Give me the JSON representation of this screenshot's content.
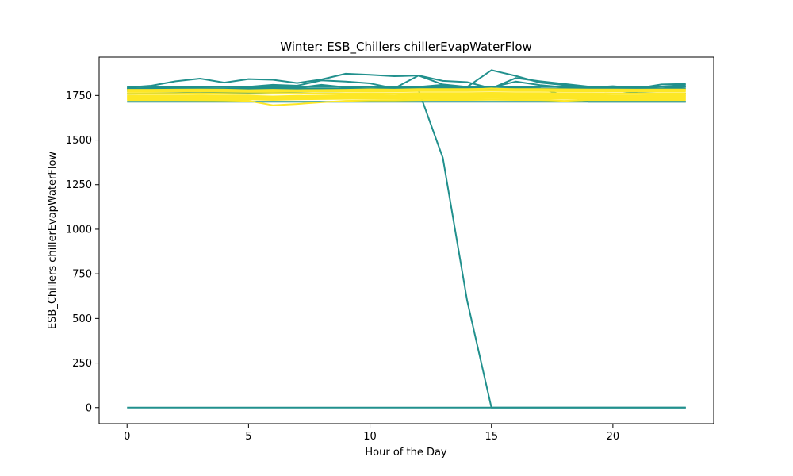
{
  "chart_data": {
    "type": "line",
    "title": "Winter: ESB_Chillers chillerEvapWaterFlow",
    "xlabel": "Hour of the Day",
    "ylabel": "ESB_Chillers chillerEvapWaterFlow",
    "xlim": [
      -1.15,
      24.15
    ],
    "ylim": [
      -90,
      1965
    ],
    "x_ticks": [
      0,
      5,
      10,
      15,
      20
    ],
    "y_ticks": [
      0,
      250,
      500,
      750,
      1000,
      1250,
      1500,
      1750
    ],
    "grid": false,
    "legend": "none",
    "x": [
      0,
      1,
      2,
      3,
      4,
      5,
      6,
      7,
      8,
      9,
      10,
      11,
      12,
      13,
      14,
      15,
      16,
      17,
      18,
      19,
      20,
      21,
      22,
      23
    ],
    "series": [
      {
        "color": "#21908d",
        "values": [
          1795,
          1805,
          1830,
          1845,
          1822,
          1842,
          1838,
          1820,
          1840,
          1872,
          1866,
          1858,
          1862,
          1832,
          1825,
          1790,
          1848,
          1830,
          1815,
          1800,
          1798,
          1790,
          1812,
          1815
        ]
      },
      {
        "color": "#21908d",
        "values": [
          1790,
          1792,
          1795,
          1798,
          1800,
          1799,
          1810,
          1805,
          1835,
          1828,
          1818,
          1790,
          1862,
          1812,
          1798,
          1892,
          1860,
          1822,
          1808,
          1795,
          1802,
          1792,
          1800,
          1810
        ]
      },
      {
        "color": "#21908d",
        "values": [
          1785,
          1786,
          1787,
          1788,
          1790,
          1792,
          1794,
          1792,
          1810,
          1796,
          1800,
          1795,
          1798,
          1810,
          1790,
          1795,
          1828,
          1808,
          1796,
          1790,
          1795,
          1785,
          1790,
          1800
        ]
      },
      {
        "color": "#21908d",
        "values": [
          1790,
          1790,
          1790,
          1790,
          1790,
          1790,
          1790,
          1790,
          1790,
          1790,
          1790,
          1790,
          1790,
          1790,
          1790,
          1790,
          1790,
          1790,
          1790,
          1790,
          1790,
          1790,
          1790,
          1790
        ]
      },
      {
        "color": "#21908d",
        "values": [
          1715,
          1715,
          1715,
          1715,
          1715,
          1715,
          1715,
          1715,
          1715,
          1715,
          1715,
          1715,
          1715,
          1715,
          1715,
          1715,
          1715,
          1715,
          1715,
          1715,
          1715,
          1715,
          1715,
          1715
        ]
      },
      {
        "color": "#21908d",
        "values": [
          1775,
          1778,
          1780,
          1782,
          1784,
          1786,
          1785,
          1784,
          1786,
          1788,
          1790,
          1789,
          1791,
          1793,
          1792,
          1790,
          1792,
          1791,
          1750,
          1715,
          1715,
          1715,
          1715,
          1715
        ]
      },
      {
        "color": "#21908d",
        "values": [
          1760,
          1761,
          1762,
          1764,
          1765,
          1766,
          1768,
          1770,
          1772,
          1774,
          1776,
          1778,
          1780,
          1780,
          1780,
          1780,
          1780,
          1780,
          1780,
          1780,
          1780,
          1765,
          1762,
          1760
        ]
      },
      {
        "color": "#21908d",
        "values": [
          1800,
          1800,
          1800,
          1800,
          1800,
          1800,
          1800,
          1800,
          1800,
          1800,
          1800,
          1800,
          1800,
          1800,
          1800,
          1800,
          1800,
          1800,
          1800,
          1800,
          1800,
          1800,
          1800,
          1800
        ]
      },
      {
        "color": "#21908d",
        "values": [
          1790,
          1790,
          1790,
          1790,
          1790,
          1790,
          1790,
          1790,
          1790,
          1790,
          1790,
          1790,
          1780,
          1400,
          600,
          0,
          0,
          0,
          0,
          0,
          0,
          0,
          0,
          0
        ]
      },
      {
        "color": "#21908d",
        "values": [
          0,
          0,
          0,
          0,
          0,
          0,
          0,
          0,
          0,
          0,
          0,
          0,
          0,
          0,
          0,
          0,
          0,
          0,
          0,
          0,
          0,
          0,
          0,
          0
        ]
      },
      {
        "color": "#fde725",
        "values": [
          1782,
          1782,
          1783,
          1784,
          1783,
          1780,
          1782,
          1780,
          1781,
          1782,
          1785,
          1783,
          1786,
          1786,
          1786,
          1788,
          1786,
          1786,
          1785,
          1784,
          1784,
          1783,
          1784,
          1784
        ]
      },
      {
        "color": "#fde725",
        "values": [
          1770,
          1770,
          1771,
          1772,
          1771,
          1770,
          1770,
          1771,
          1772,
          1773,
          1774,
          1773,
          1775,
          1775,
          1775,
          1776,
          1775,
          1775,
          1774,
          1774,
          1773,
          1773,
          1774,
          1774
        ]
      },
      {
        "color": "#fde725",
        "values": [
          1760,
          1760,
          1760,
          1761,
          1760,
          1758,
          1760,
          1760,
          1761,
          1762,
          1763,
          1762,
          1764,
          1764,
          1764,
          1765,
          1764,
          1764,
          1763,
          1763,
          1762,
          1762,
          1763,
          1763
        ]
      },
      {
        "color": "#fde725",
        "values": [
          1750,
          1750,
          1750,
          1751,
          1750,
          1748,
          1745,
          1748,
          1750,
          1752,
          1752,
          1751,
          1753,
          1753,
          1754,
          1755,
          1753,
          1753,
          1752,
          1752,
          1751,
          1751,
          1752,
          1752
        ]
      },
      {
        "color": "#fde725",
        "values": [
          1740,
          1740,
          1740,
          1740,
          1739,
          1738,
          1736,
          1738,
          1740,
          1741,
          1742,
          1741,
          1742,
          1743,
          1743,
          1744,
          1743,
          1742,
          1742,
          1741,
          1741,
          1740,
          1741,
          1741
        ]
      },
      {
        "color": "#fde725",
        "values": [
          1730,
          1730,
          1730,
          1730,
          1729,
          1728,
          1725,
          1728,
          1730,
          1731,
          1732,
          1731,
          1732,
          1733,
          1733,
          1734,
          1733,
          1732,
          1731,
          1731,
          1730,
          1730,
          1731,
          1731
        ]
      },
      {
        "color": "#fde725",
        "values": [
          1724,
          1724,
          1724,
          1723,
          1722,
          1720,
          1695,
          1702,
          1712,
          1720,
          1722,
          1722,
          1724,
          1725,
          1725,
          1726,
          1725,
          1724,
          1720,
          1724,
          1724,
          1724,
          1724,
          1724
        ]
      },
      {
        "color": "#fde725",
        "values": [
          1778,
          1778,
          1779,
          1778,
          1777,
          1776,
          1777,
          1778,
          1779,
          1780,
          1781,
          1780,
          1782,
          1782,
          1782,
          1790,
          1781,
          1781,
          1780,
          1780,
          1779,
          1779,
          1780,
          1780
        ]
      },
      {
        "color": "#fde725",
        "values": [
          1745,
          1745,
          1745,
          1746,
          1745,
          1743,
          1740,
          1742,
          1745,
          1747,
          1748,
          1747,
          1748,
          1749,
          1749,
          1750,
          1749,
          1748,
          1747,
          1747,
          1746,
          1746,
          1747,
          1747
        ]
      },
      {
        "color": "#fde725",
        "values": [
          1735,
          1735,
          1735,
          1735,
          1734,
          1733,
          1730,
          1733,
          1735,
          1736,
          1737,
          1736,
          1737,
          1738,
          1738,
          1739,
          1738,
          1737,
          1736,
          1736,
          1735,
          1735,
          1736,
          1736
        ]
      }
    ]
  }
}
